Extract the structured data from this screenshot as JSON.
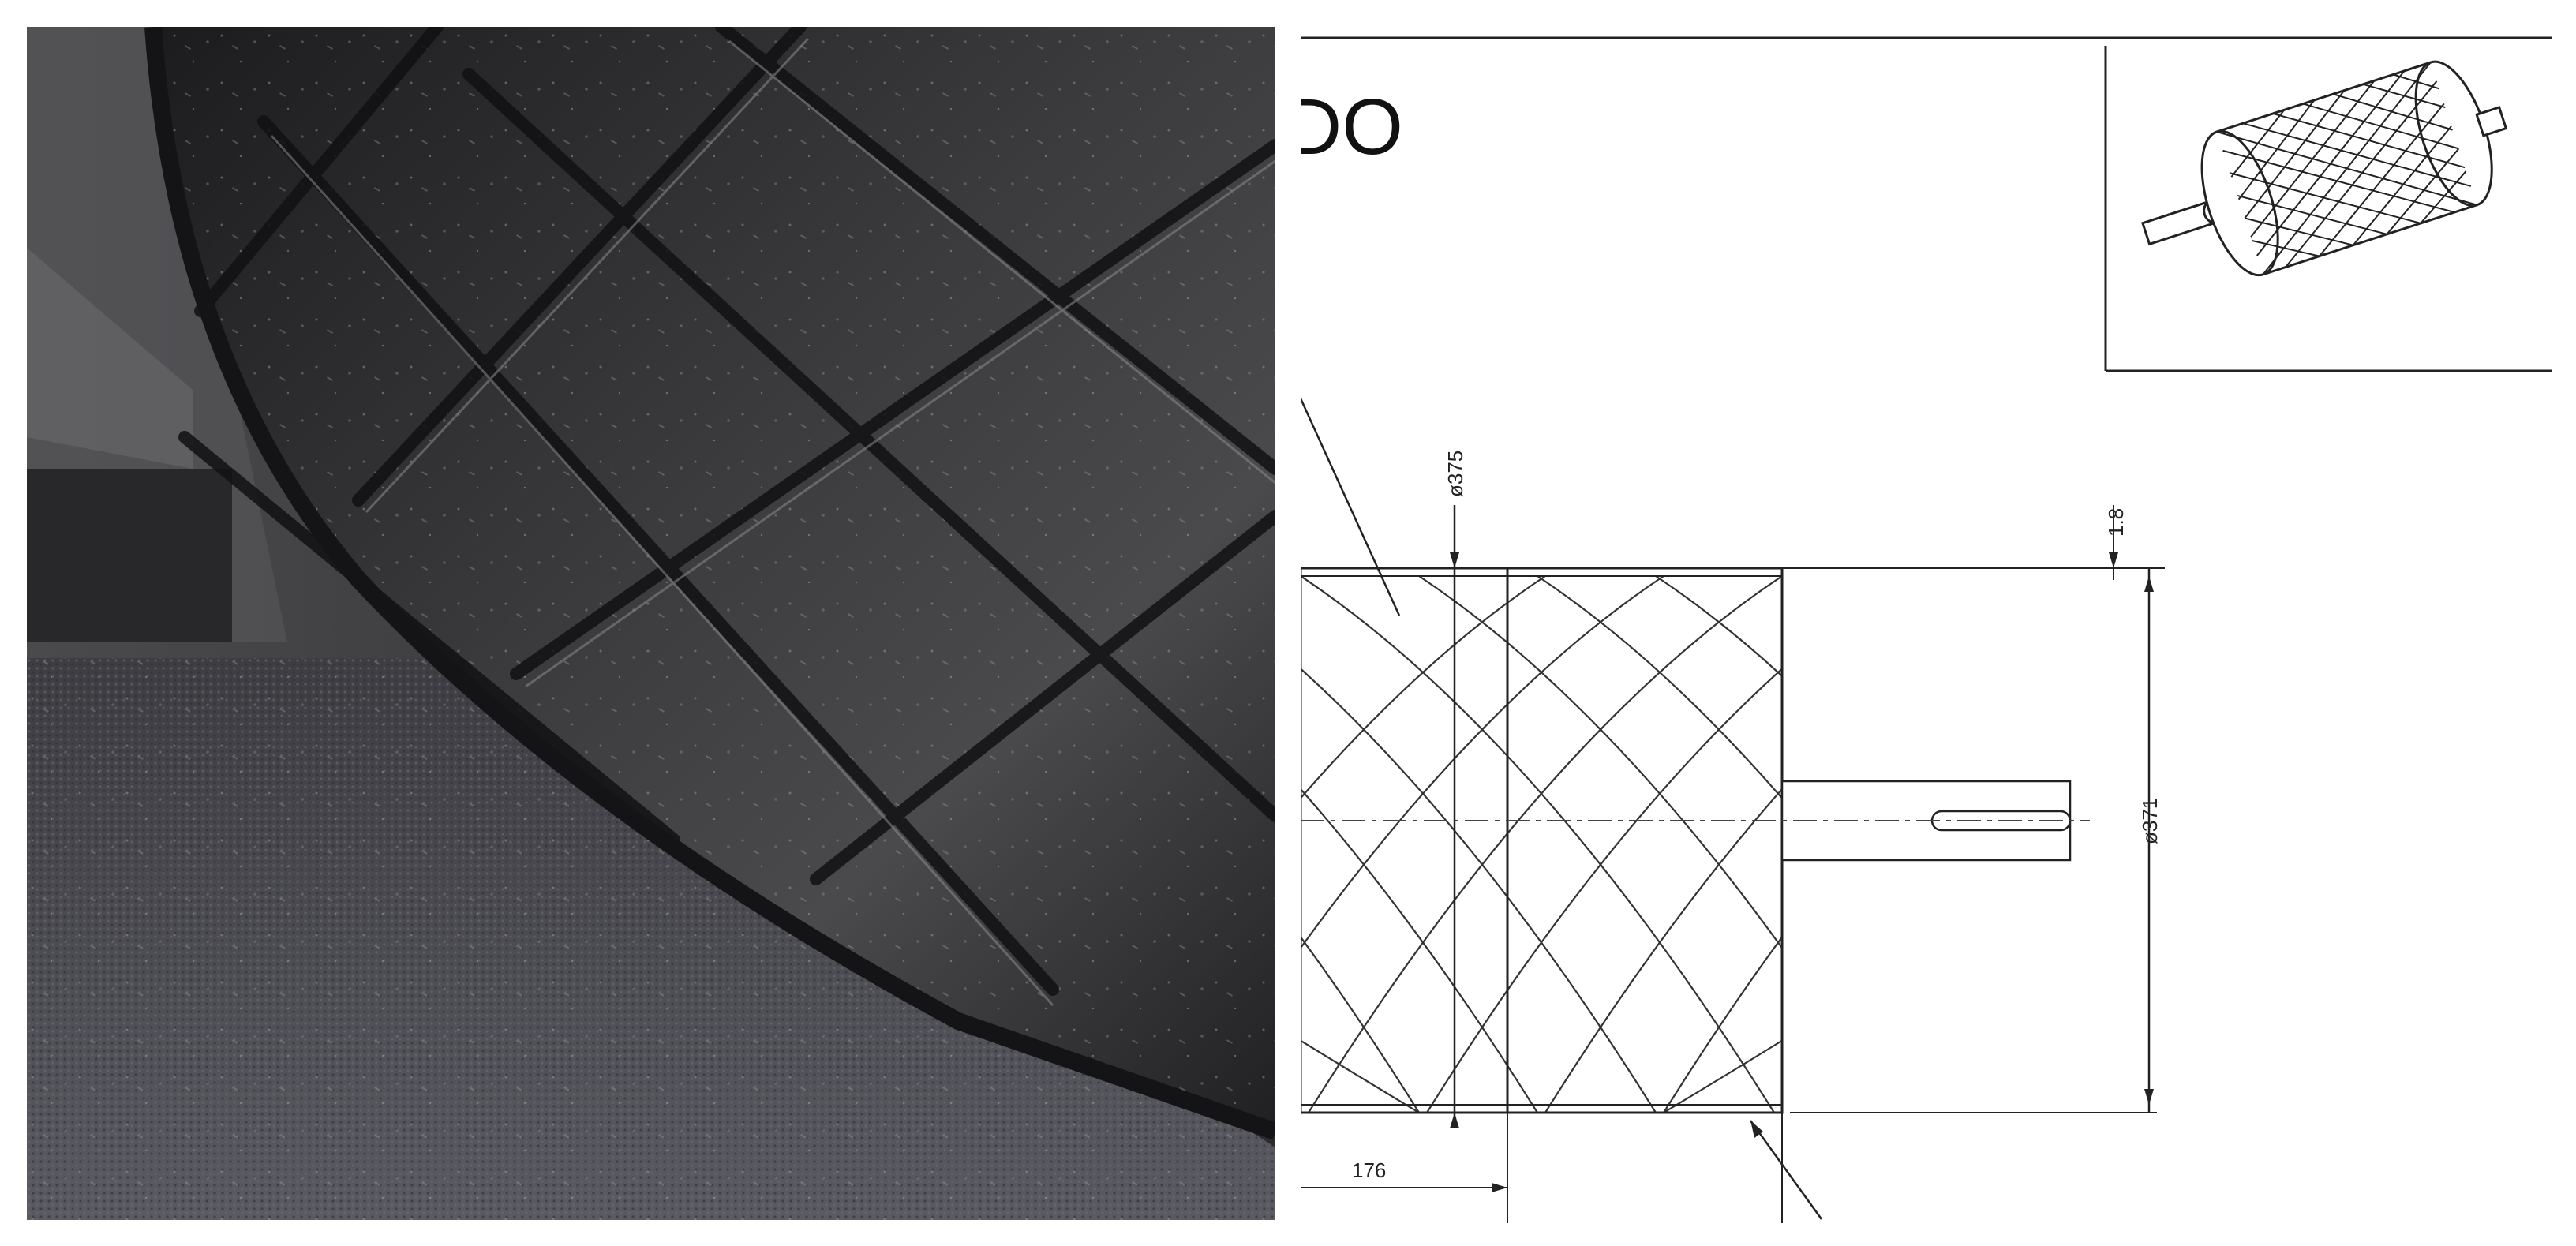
{
  "drawing": {
    "title_fragment": "DO",
    "dimensions": {
      "shell_diameter": "ø375",
      "rubber_thickness": "1.8",
      "overall_diameter": "ø371",
      "end_offset": "176"
    }
  },
  "colors": {
    "rubber_dark": "#2a2a2c",
    "belt_grey": "#55555c",
    "line": "#222222"
  }
}
